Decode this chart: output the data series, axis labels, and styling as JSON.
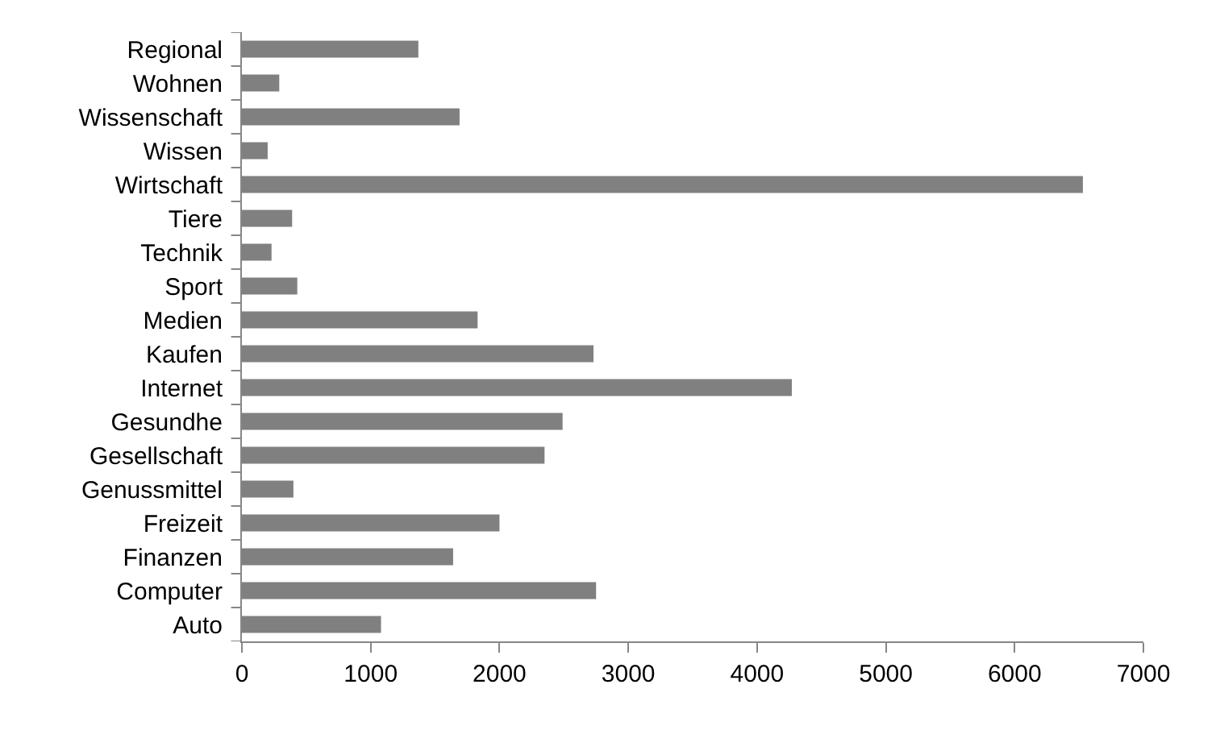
{
  "chart_data": {
    "type": "bar",
    "orientation": "horizontal",
    "categories": [
      "Regional",
      "Wohnen",
      "Wissenschaft",
      "Wissen",
      "Wirtschaft",
      "Tiere",
      "Technik",
      "Sport",
      "Medien",
      "Kaufen",
      "Internet",
      "Gesundhe",
      "Gesellschaft",
      "Genussmittel",
      "Freizeit",
      "Finanzen",
      "Computer",
      "Auto"
    ],
    "values": [
      1370,
      290,
      1690,
      200,
      6530,
      390,
      230,
      430,
      1830,
      2730,
      4270,
      2490,
      2350,
      400,
      2000,
      1640,
      2750,
      1080
    ],
    "color": "#808080",
    "xlim": [
      0,
      7000
    ],
    "xticks": [
      0,
      1000,
      2000,
      3000,
      4000,
      5000,
      6000,
      7000
    ]
  }
}
